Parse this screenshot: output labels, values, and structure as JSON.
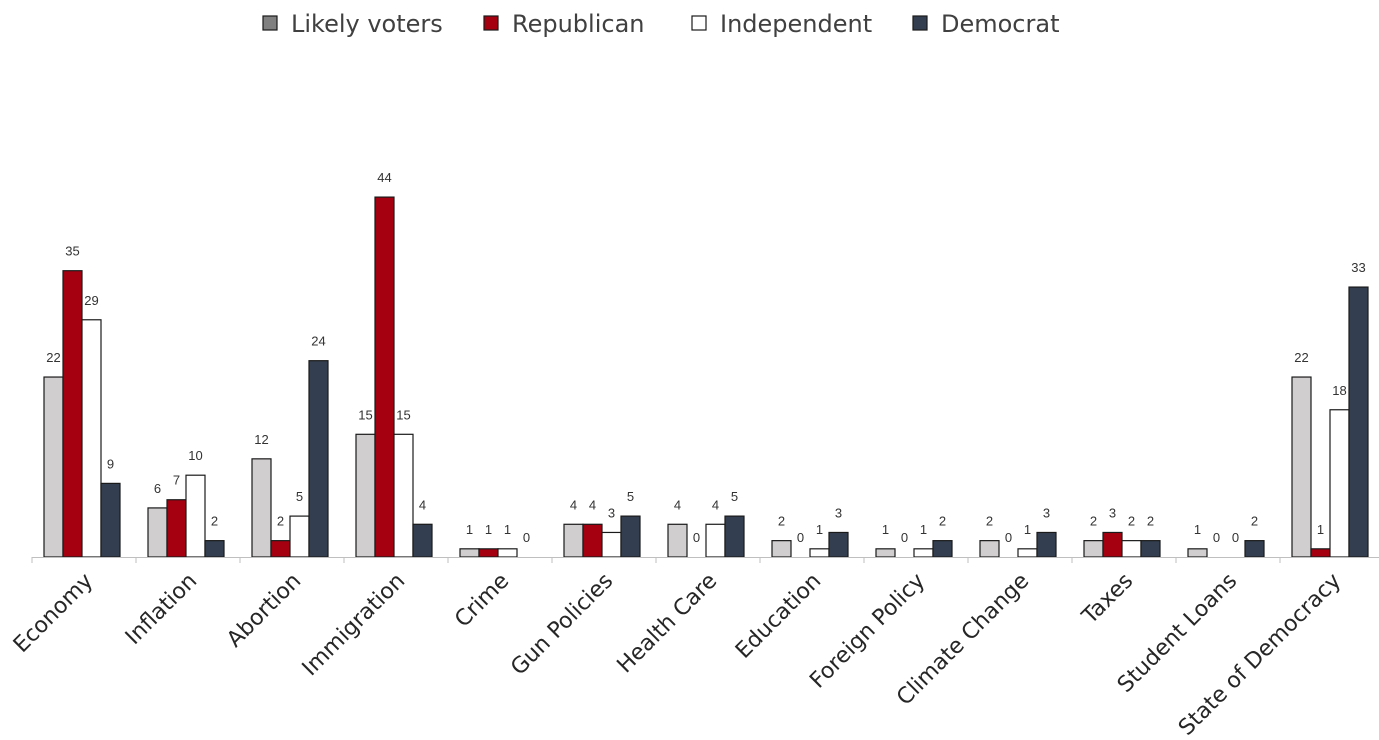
{
  "chart_data": {
    "type": "bar",
    "title": "",
    "xlabel": "",
    "ylabel": "",
    "ylim": [
      0,
      44
    ],
    "grid": false,
    "legend_position": "top",
    "categories": [
      "Economy",
      "Inflation",
      "Abortion",
      "Immigration",
      "Crime",
      "Gun Policies",
      "Health Care",
      "Education",
      "Foreign Policy",
      "Climate Change",
      "Taxes",
      "Student Loans",
      "State of Democracy"
    ],
    "series": [
      {
        "name": "Likely voters",
        "color": "#d0cece",
        "legend_color": "#808080",
        "values": [
          22,
          6,
          12,
          15,
          1,
          4,
          4,
          2,
          1,
          2,
          2,
          1,
          22
        ]
      },
      {
        "name": "Republican",
        "color": "#a50010",
        "legend_color": "#a50010",
        "values": [
          35,
          7,
          2,
          44,
          1,
          4,
          0,
          0,
          0,
          0,
          3,
          0,
          1
        ]
      },
      {
        "name": "Independent",
        "color": "#ffffff",
        "legend_color": "#ffffff",
        "values": [
          29,
          10,
          5,
          15,
          1,
          3,
          4,
          1,
          1,
          1,
          2,
          0,
          18
        ]
      },
      {
        "name": "Democrat",
        "color": "#333f50",
        "legend_color": "#333f50",
        "values": [
          9,
          2,
          24,
          4,
          0,
          5,
          5,
          3,
          2,
          3,
          2,
          2,
          33
        ]
      }
    ]
  }
}
